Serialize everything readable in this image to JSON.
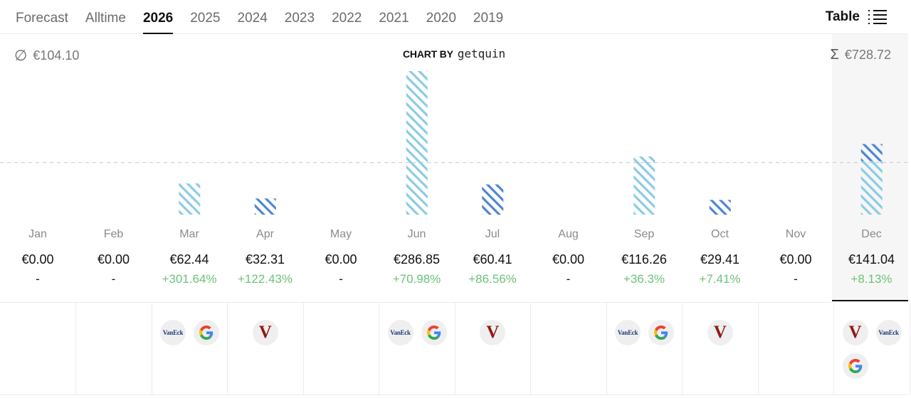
{
  "tabs": [
    {
      "label": "Forecast",
      "active": false
    },
    {
      "label": "Alltime",
      "active": false
    },
    {
      "label": "2026",
      "active": true
    },
    {
      "label": "2025",
      "active": false
    },
    {
      "label": "2024",
      "active": false
    },
    {
      "label": "2023",
      "active": false
    },
    {
      "label": "2022",
      "active": false
    },
    {
      "label": "2021",
      "active": false
    },
    {
      "label": "2020",
      "active": false
    },
    {
      "label": "2019",
      "active": false
    }
  ],
  "table_toggle": {
    "label": "Table",
    "icon": "list-icon"
  },
  "header": {
    "avg_icon": "∅",
    "average": "€104.10",
    "chart_by_label": "CHART BY",
    "chart_by_brand": "getquin",
    "sum_icon": "Σ",
    "total": "€728.72"
  },
  "colors": {
    "light_hatch": "#8ccbe4",
    "dark_hatch": "#4d86d0",
    "positive": "#6cc27a",
    "average_line": "#cccccc"
  },
  "chart_data": {
    "type": "bar",
    "stacked": true,
    "categories": [
      "Jan",
      "Feb",
      "Mar",
      "Apr",
      "May",
      "Jun",
      "Jul",
      "Aug",
      "Sep",
      "Oct",
      "Nov",
      "Dec"
    ],
    "series": [
      {
        "color": "#8ccbe4",
        "values": [
          0,
          0,
          62.44,
          0,
          0,
          286.85,
          0,
          0,
          116.26,
          0,
          0,
          107.0
        ]
      },
      {
        "color": "#4d86d0",
        "values": [
          0,
          0,
          0,
          32.31,
          0,
          0,
          60.41,
          0,
          0,
          29.41,
          0,
          34.04
        ]
      }
    ],
    "totals": [
      0,
      0,
      62.44,
      32.31,
      0,
      286.85,
      60.41,
      0,
      116.26,
      29.41,
      0,
      141.04
    ],
    "average_line": 104.1,
    "ylim": [
      0,
      286.85
    ],
    "grid": false,
    "legend": "none"
  },
  "months": [
    {
      "name": "Jan",
      "amount": "€0.00",
      "change": "-",
      "positive": false
    },
    {
      "name": "Feb",
      "amount": "€0.00",
      "change": "-",
      "positive": false
    },
    {
      "name": "Mar",
      "amount": "€62.44",
      "change": "+301.64%",
      "positive": true
    },
    {
      "name": "Apr",
      "amount": "€32.31",
      "change": "+122.43%",
      "positive": true
    },
    {
      "name": "May",
      "amount": "€0.00",
      "change": "-",
      "positive": false
    },
    {
      "name": "Jun",
      "amount": "€286.85",
      "change": "+70.98%",
      "positive": true
    },
    {
      "name": "Jul",
      "amount": "€60.41",
      "change": "+86.56%",
      "positive": true
    },
    {
      "name": "Aug",
      "amount": "€0.00",
      "change": "-",
      "positive": false
    },
    {
      "name": "Sep",
      "amount": "€116.26",
      "change": "+36.3%",
      "positive": true
    },
    {
      "name": "Oct",
      "amount": "€29.41",
      "change": "+7.41%",
      "positive": true
    },
    {
      "name": "Nov",
      "amount": "€0.00",
      "change": "-",
      "positive": false
    },
    {
      "name": "Dec",
      "amount": "€141.04",
      "change": "+8.13%",
      "positive": true
    }
  ],
  "logos": [
    [],
    [],
    [
      {
        "type": "vaneck",
        "text": "VanEck"
      },
      {
        "type": "google",
        "text": "G"
      }
    ],
    [
      {
        "type": "vanguard",
        "text": "V"
      }
    ],
    [],
    [
      {
        "type": "vaneck",
        "text": "VanEck"
      },
      {
        "type": "google",
        "text": "G"
      }
    ],
    [
      {
        "type": "vanguard",
        "text": "V"
      }
    ],
    [],
    [
      {
        "type": "vaneck",
        "text": "VanEck"
      },
      {
        "type": "google",
        "text": "G"
      }
    ],
    [
      {
        "type": "vanguard",
        "text": "V"
      }
    ],
    [],
    [
      {
        "type": "vanguard",
        "text": "V"
      },
      {
        "type": "vaneck",
        "text": "VanEck"
      },
      {
        "type": "google",
        "text": "G"
      }
    ]
  ]
}
